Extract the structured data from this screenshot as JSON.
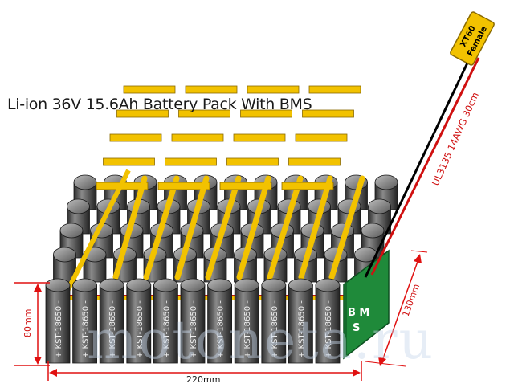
{
  "title": "Li-ion 36V 15.6Ah Battery Pack With BMS",
  "connector": {
    "line1": "XT60",
    "line2": "Female"
  },
  "cable_label": "UL3135 14AWG 30cm",
  "bms": {
    "line1": "B M",
    "line2": "S"
  },
  "cell_label": "+ KST-18650 -",
  "dimensions": {
    "height": "80mm",
    "width": "220mm",
    "depth": "130mm"
  },
  "watermark": "motoneta.ru",
  "colors": {
    "cell_body": "#3c3c3c",
    "strip": "#f2c200",
    "bms": "#1f8a3a",
    "dimension": "#e01010",
    "connector": "#f2c200"
  }
}
